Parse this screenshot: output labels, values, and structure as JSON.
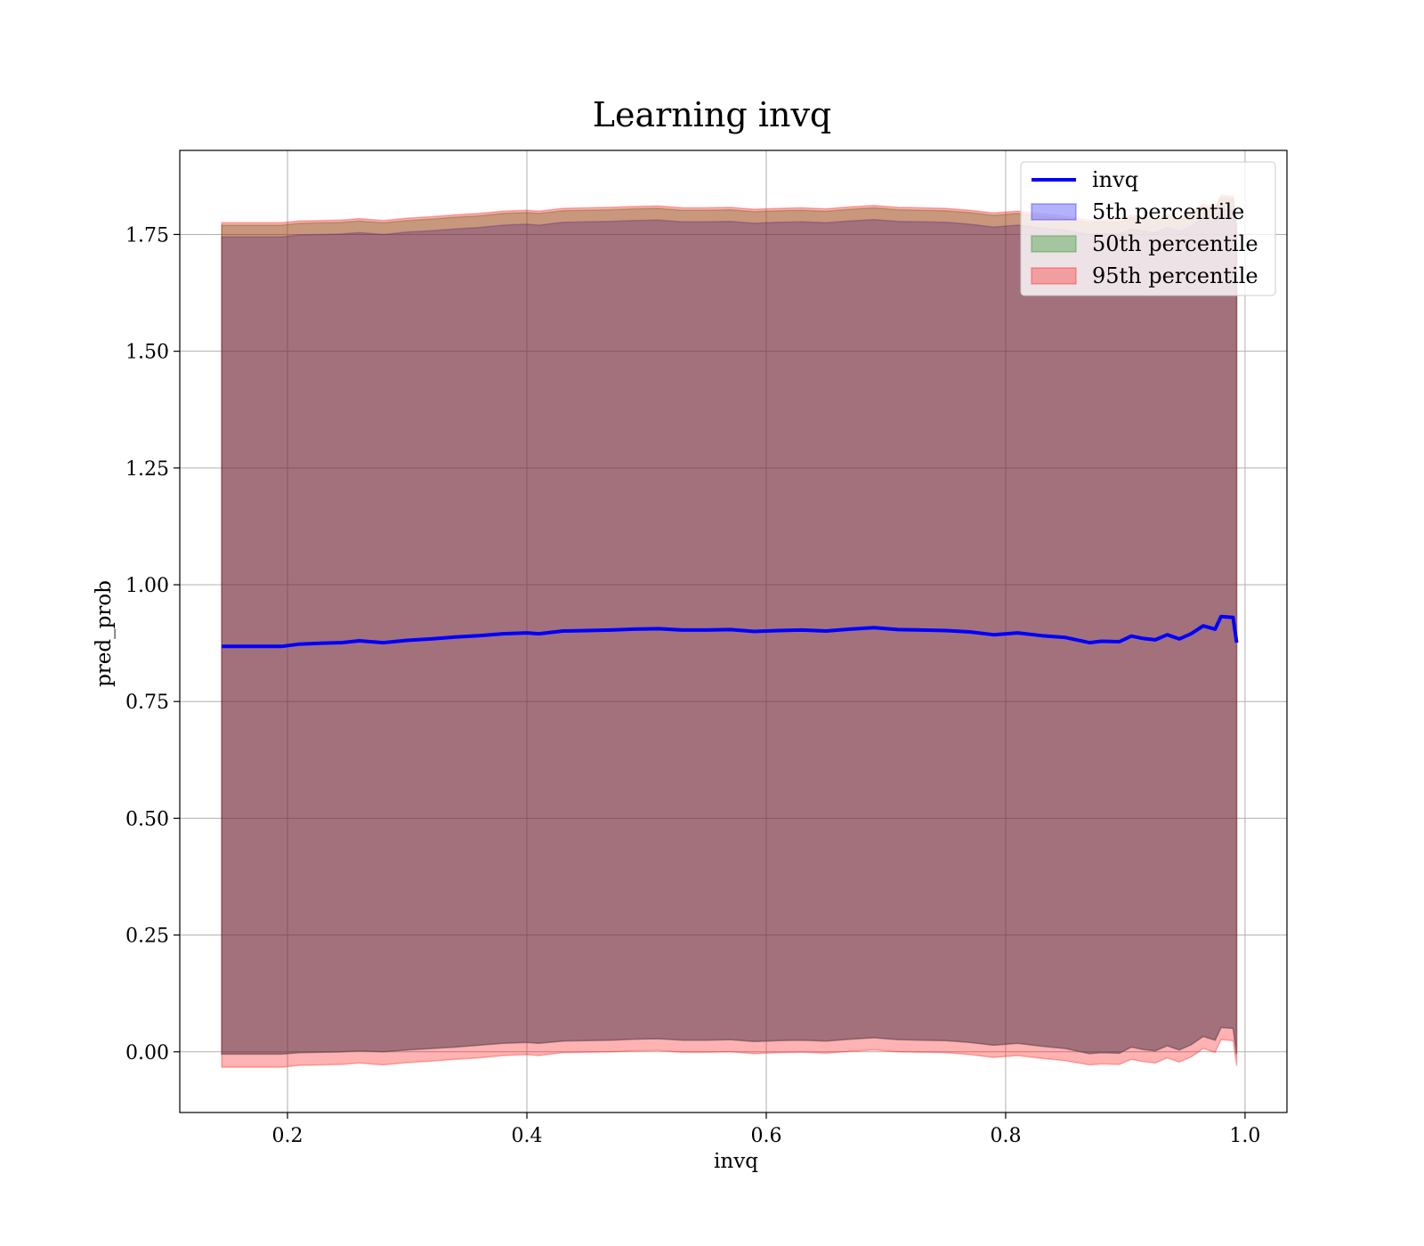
{
  "chart_data": {
    "type": "line",
    "title": "Learning invq",
    "xlabel": "invq",
    "ylabel": "pred_prob",
    "xlim": [
      0.11,
      1.035
    ],
    "ylim": [
      -0.13,
      1.93
    ],
    "xticks": [
      0.2,
      0.4,
      0.6,
      0.8,
      1.0
    ],
    "xtick_labels": [
      "0.2",
      "0.4",
      "0.6",
      "0.8",
      "1.0"
    ],
    "yticks": [
      0.0,
      0.25,
      0.5,
      0.75,
      1.0,
      1.25,
      1.5,
      1.75
    ],
    "ytick_labels": [
      "0.00",
      "0.25",
      "0.50",
      "0.75",
      "1.00",
      "1.25",
      "1.50",
      "1.75"
    ],
    "grid": true,
    "legend_position": "top-right",
    "x": [
      0.145,
      0.16,
      0.18,
      0.195,
      0.21,
      0.23,
      0.245,
      0.26,
      0.28,
      0.3,
      0.32,
      0.34,
      0.36,
      0.38,
      0.4,
      0.41,
      0.43,
      0.45,
      0.47,
      0.49,
      0.51,
      0.53,
      0.55,
      0.57,
      0.59,
      0.61,
      0.63,
      0.65,
      0.67,
      0.69,
      0.71,
      0.73,
      0.75,
      0.77,
      0.79,
      0.81,
      0.83,
      0.85,
      0.87,
      0.88,
      0.895,
      0.905,
      0.915,
      0.925,
      0.935,
      0.945,
      0.955,
      0.965,
      0.975,
      0.98,
      0.99,
      0.993
    ],
    "series": [
      {
        "name": "invq",
        "color": "#0000ff",
        "values": [
          0.868,
          0.868,
          0.868,
          0.868,
          0.873,
          0.875,
          0.876,
          0.88,
          0.876,
          0.881,
          0.884,
          0.888,
          0.891,
          0.895,
          0.897,
          0.895,
          0.901,
          0.902,
          0.903,
          0.905,
          0.906,
          0.903,
          0.903,
          0.904,
          0.9,
          0.902,
          0.903,
          0.901,
          0.905,
          0.908,
          0.904,
          0.903,
          0.902,
          0.899,
          0.893,
          0.897,
          0.891,
          0.887,
          0.876,
          0.879,
          0.878,
          0.89,
          0.885,
          0.882,
          0.893,
          0.884,
          0.895,
          0.912,
          0.905,
          0.932,
          0.93,
          0.876
        ]
      }
    ],
    "bands": [
      {
        "name": "5th percentile",
        "color": "#0000ff",
        "lower": [
          -0.005,
          -0.005,
          -0.005,
          -0.005,
          -0.002,
          -0.001,
          0.0,
          0.002,
          0.0,
          0.004,
          0.007,
          0.01,
          0.014,
          0.018,
          0.02,
          0.018,
          0.023,
          0.024,
          0.025,
          0.027,
          0.028,
          0.025,
          0.025,
          0.026,
          0.022,
          0.024,
          0.025,
          0.023,
          0.027,
          0.03,
          0.026,
          0.025,
          0.024,
          0.02,
          0.014,
          0.018,
          0.012,
          0.007,
          -0.004,
          -0.002,
          -0.003,
          0.01,
          0.005,
          0.002,
          0.013,
          0.004,
          0.015,
          0.033,
          0.025,
          0.052,
          0.05,
          -0.005
        ],
        "upper": [
          1.745,
          1.745,
          1.745,
          1.745,
          1.749,
          1.75,
          1.751,
          1.754,
          1.75,
          1.755,
          1.758,
          1.762,
          1.765,
          1.77,
          1.772,
          1.77,
          1.776,
          1.777,
          1.778,
          1.78,
          1.781,
          1.777,
          1.777,
          1.778,
          1.774,
          1.776,
          1.777,
          1.775,
          1.779,
          1.782,
          1.778,
          1.777,
          1.776,
          1.772,
          1.766,
          1.77,
          1.764,
          1.759,
          1.75,
          1.752,
          1.751,
          1.762,
          1.757,
          1.754,
          1.765,
          1.756,
          1.767,
          1.785,
          1.777,
          1.804,
          1.802,
          1.748
        ]
      },
      {
        "name": "50th percentile",
        "color": "#008000",
        "lower": [
          -0.005,
          -0.005,
          -0.005,
          -0.005,
          -0.002,
          -0.001,
          0.0,
          0.002,
          0.0,
          0.004,
          0.007,
          0.01,
          0.014,
          0.018,
          0.02,
          0.018,
          0.023,
          0.024,
          0.025,
          0.027,
          0.028,
          0.025,
          0.025,
          0.026,
          0.022,
          0.024,
          0.025,
          0.023,
          0.027,
          0.03,
          0.026,
          0.025,
          0.024,
          0.02,
          0.014,
          0.018,
          0.012,
          0.007,
          -0.004,
          -0.002,
          -0.003,
          0.01,
          0.005,
          0.002,
          0.013,
          0.004,
          0.015,
          0.033,
          0.025,
          0.052,
          0.05,
          -0.005
        ],
        "upper": [
          1.77,
          1.77,
          1.77,
          1.77,
          1.774,
          1.775,
          1.776,
          1.779,
          1.775,
          1.78,
          1.783,
          1.787,
          1.79,
          1.795,
          1.797,
          1.795,
          1.801,
          1.802,
          1.803,
          1.805,
          1.806,
          1.802,
          1.802,
          1.803,
          1.799,
          1.801,
          1.802,
          1.8,
          1.804,
          1.807,
          1.803,
          1.802,
          1.801,
          1.797,
          1.791,
          1.795,
          1.789,
          1.784,
          1.775,
          1.777,
          1.776,
          1.787,
          1.782,
          1.779,
          1.79,
          1.781,
          1.792,
          1.81,
          1.802,
          1.829,
          1.827,
          1.773
        ]
      },
      {
        "name": "95th percentile",
        "color": "#ff0000",
        "lower": [
          -0.033,
          -0.033,
          -0.033,
          -0.033,
          -0.029,
          -0.028,
          -0.027,
          -0.024,
          -0.028,
          -0.023,
          -0.02,
          -0.016,
          -0.013,
          -0.008,
          -0.006,
          -0.008,
          -0.002,
          -0.001,
          0.0,
          0.002,
          0.003,
          -0.001,
          -0.001,
          0.0,
          -0.004,
          -0.002,
          -0.001,
          -0.003,
          0.001,
          0.004,
          0.0,
          -0.001,
          -0.002,
          -0.006,
          -0.012,
          -0.008,
          -0.014,
          -0.019,
          -0.028,
          -0.026,
          -0.027,
          -0.016,
          -0.021,
          -0.024,
          -0.013,
          -0.022,
          -0.011,
          0.007,
          -0.001,
          0.026,
          0.024,
          -0.03
        ],
        "upper": [
          1.775,
          1.775,
          1.775,
          1.775,
          1.779,
          1.78,
          1.781,
          1.784,
          1.78,
          1.785,
          1.788,
          1.792,
          1.795,
          1.8,
          1.802,
          1.8,
          1.806,
          1.807,
          1.808,
          1.81,
          1.811,
          1.807,
          1.807,
          1.808,
          1.804,
          1.806,
          1.807,
          1.805,
          1.809,
          1.812,
          1.808,
          1.807,
          1.806,
          1.802,
          1.796,
          1.8,
          1.794,
          1.789,
          1.78,
          1.782,
          1.781,
          1.792,
          1.787,
          1.784,
          1.795,
          1.786,
          1.797,
          1.815,
          1.807,
          1.834,
          1.832,
          1.778
        ]
      }
    ]
  }
}
